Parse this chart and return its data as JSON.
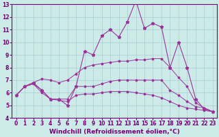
{
  "background_color": "#cceae8",
  "grid_color": "#aacece",
  "xlabel": "Windchill (Refroidissement éolien,°C)",
  "xlabel_color": "#770077",
  "xlabel_fontsize": 6.5,
  "tick_color": "#770077",
  "tick_fontsize": 5.5,
  "xlim": [
    -0.5,
    23.5
  ],
  "ylim": [
    4,
    13
  ],
  "yticks": [
    4,
    5,
    6,
    7,
    8,
    9,
    10,
    11,
    12,
    13
  ],
  "xticks": [
    0,
    1,
    2,
    3,
    4,
    5,
    6,
    7,
    8,
    9,
    10,
    11,
    12,
    13,
    14,
    15,
    16,
    17,
    18,
    19,
    20,
    21,
    22,
    23
  ],
  "series": [
    {
      "x": [
        0,
        1,
        2,
        3,
        4,
        5,
        6,
        7,
        8,
        9,
        10,
        11,
        12,
        13,
        14,
        15,
        16,
        17,
        18,
        19,
        20,
        21,
        22,
        23
      ],
      "y": [
        5.8,
        6.5,
        6.8,
        6.2,
        5.5,
        5.5,
        5.0,
        6.5,
        9.3,
        9.0,
        10.5,
        11.0,
        10.4,
        11.6,
        13.3,
        11.1,
        11.5,
        11.2,
        8.0,
        10.0,
        8.0,
        5.5,
        4.7,
        4.5
      ],
      "color": "#993399",
      "marker": "*",
      "markersize": 3.5,
      "linewidth": 0.8
    },
    {
      "x": [
        0,
        1,
        2,
        3,
        4,
        5,
        6,
        7,
        8,
        9,
        10,
        11,
        12,
        13,
        14,
        15,
        16,
        17,
        18,
        19,
        20,
        21,
        22,
        23
      ],
      "y": [
        5.8,
        6.5,
        6.8,
        7.1,
        7.0,
        6.8,
        7.0,
        7.5,
        8.0,
        8.2,
        8.3,
        8.4,
        8.5,
        8.5,
        8.6,
        8.6,
        8.7,
        8.7,
        8.0,
        7.2,
        6.5,
        5.2,
        4.8,
        4.5
      ],
      "color": "#993399",
      "marker": "*",
      "markersize": 2.5,
      "linewidth": 0.7
    },
    {
      "x": [
        0,
        1,
        2,
        3,
        4,
        5,
        6,
        7,
        8,
        9,
        10,
        11,
        12,
        13,
        14,
        15,
        16,
        17,
        18,
        19,
        20,
        21,
        22,
        23
      ],
      "y": [
        5.8,
        6.5,
        6.7,
        6.2,
        5.5,
        5.5,
        5.5,
        6.5,
        6.5,
        6.5,
        6.7,
        6.9,
        7.0,
        7.0,
        7.0,
        7.0,
        7.0,
        7.0,
        6.2,
        5.8,
        5.3,
        4.9,
        4.8,
        4.5
      ],
      "color": "#993399",
      "marker": "*",
      "markersize": 2.5,
      "linewidth": 0.7
    },
    {
      "x": [
        0,
        1,
        2,
        3,
        4,
        5,
        6,
        7,
        8,
        9,
        10,
        11,
        12,
        13,
        14,
        15,
        16,
        17,
        18,
        19,
        20,
        21,
        22,
        23
      ],
      "y": [
        5.8,
        6.5,
        6.7,
        6.0,
        5.5,
        5.4,
        5.3,
        5.8,
        5.9,
        5.9,
        6.0,
        6.1,
        6.1,
        6.1,
        6.0,
        5.9,
        5.8,
        5.6,
        5.3,
        5.0,
        4.8,
        4.7,
        4.6,
        4.5
      ],
      "color": "#993399",
      "marker": "*",
      "markersize": 2.5,
      "linewidth": 0.7
    }
  ]
}
